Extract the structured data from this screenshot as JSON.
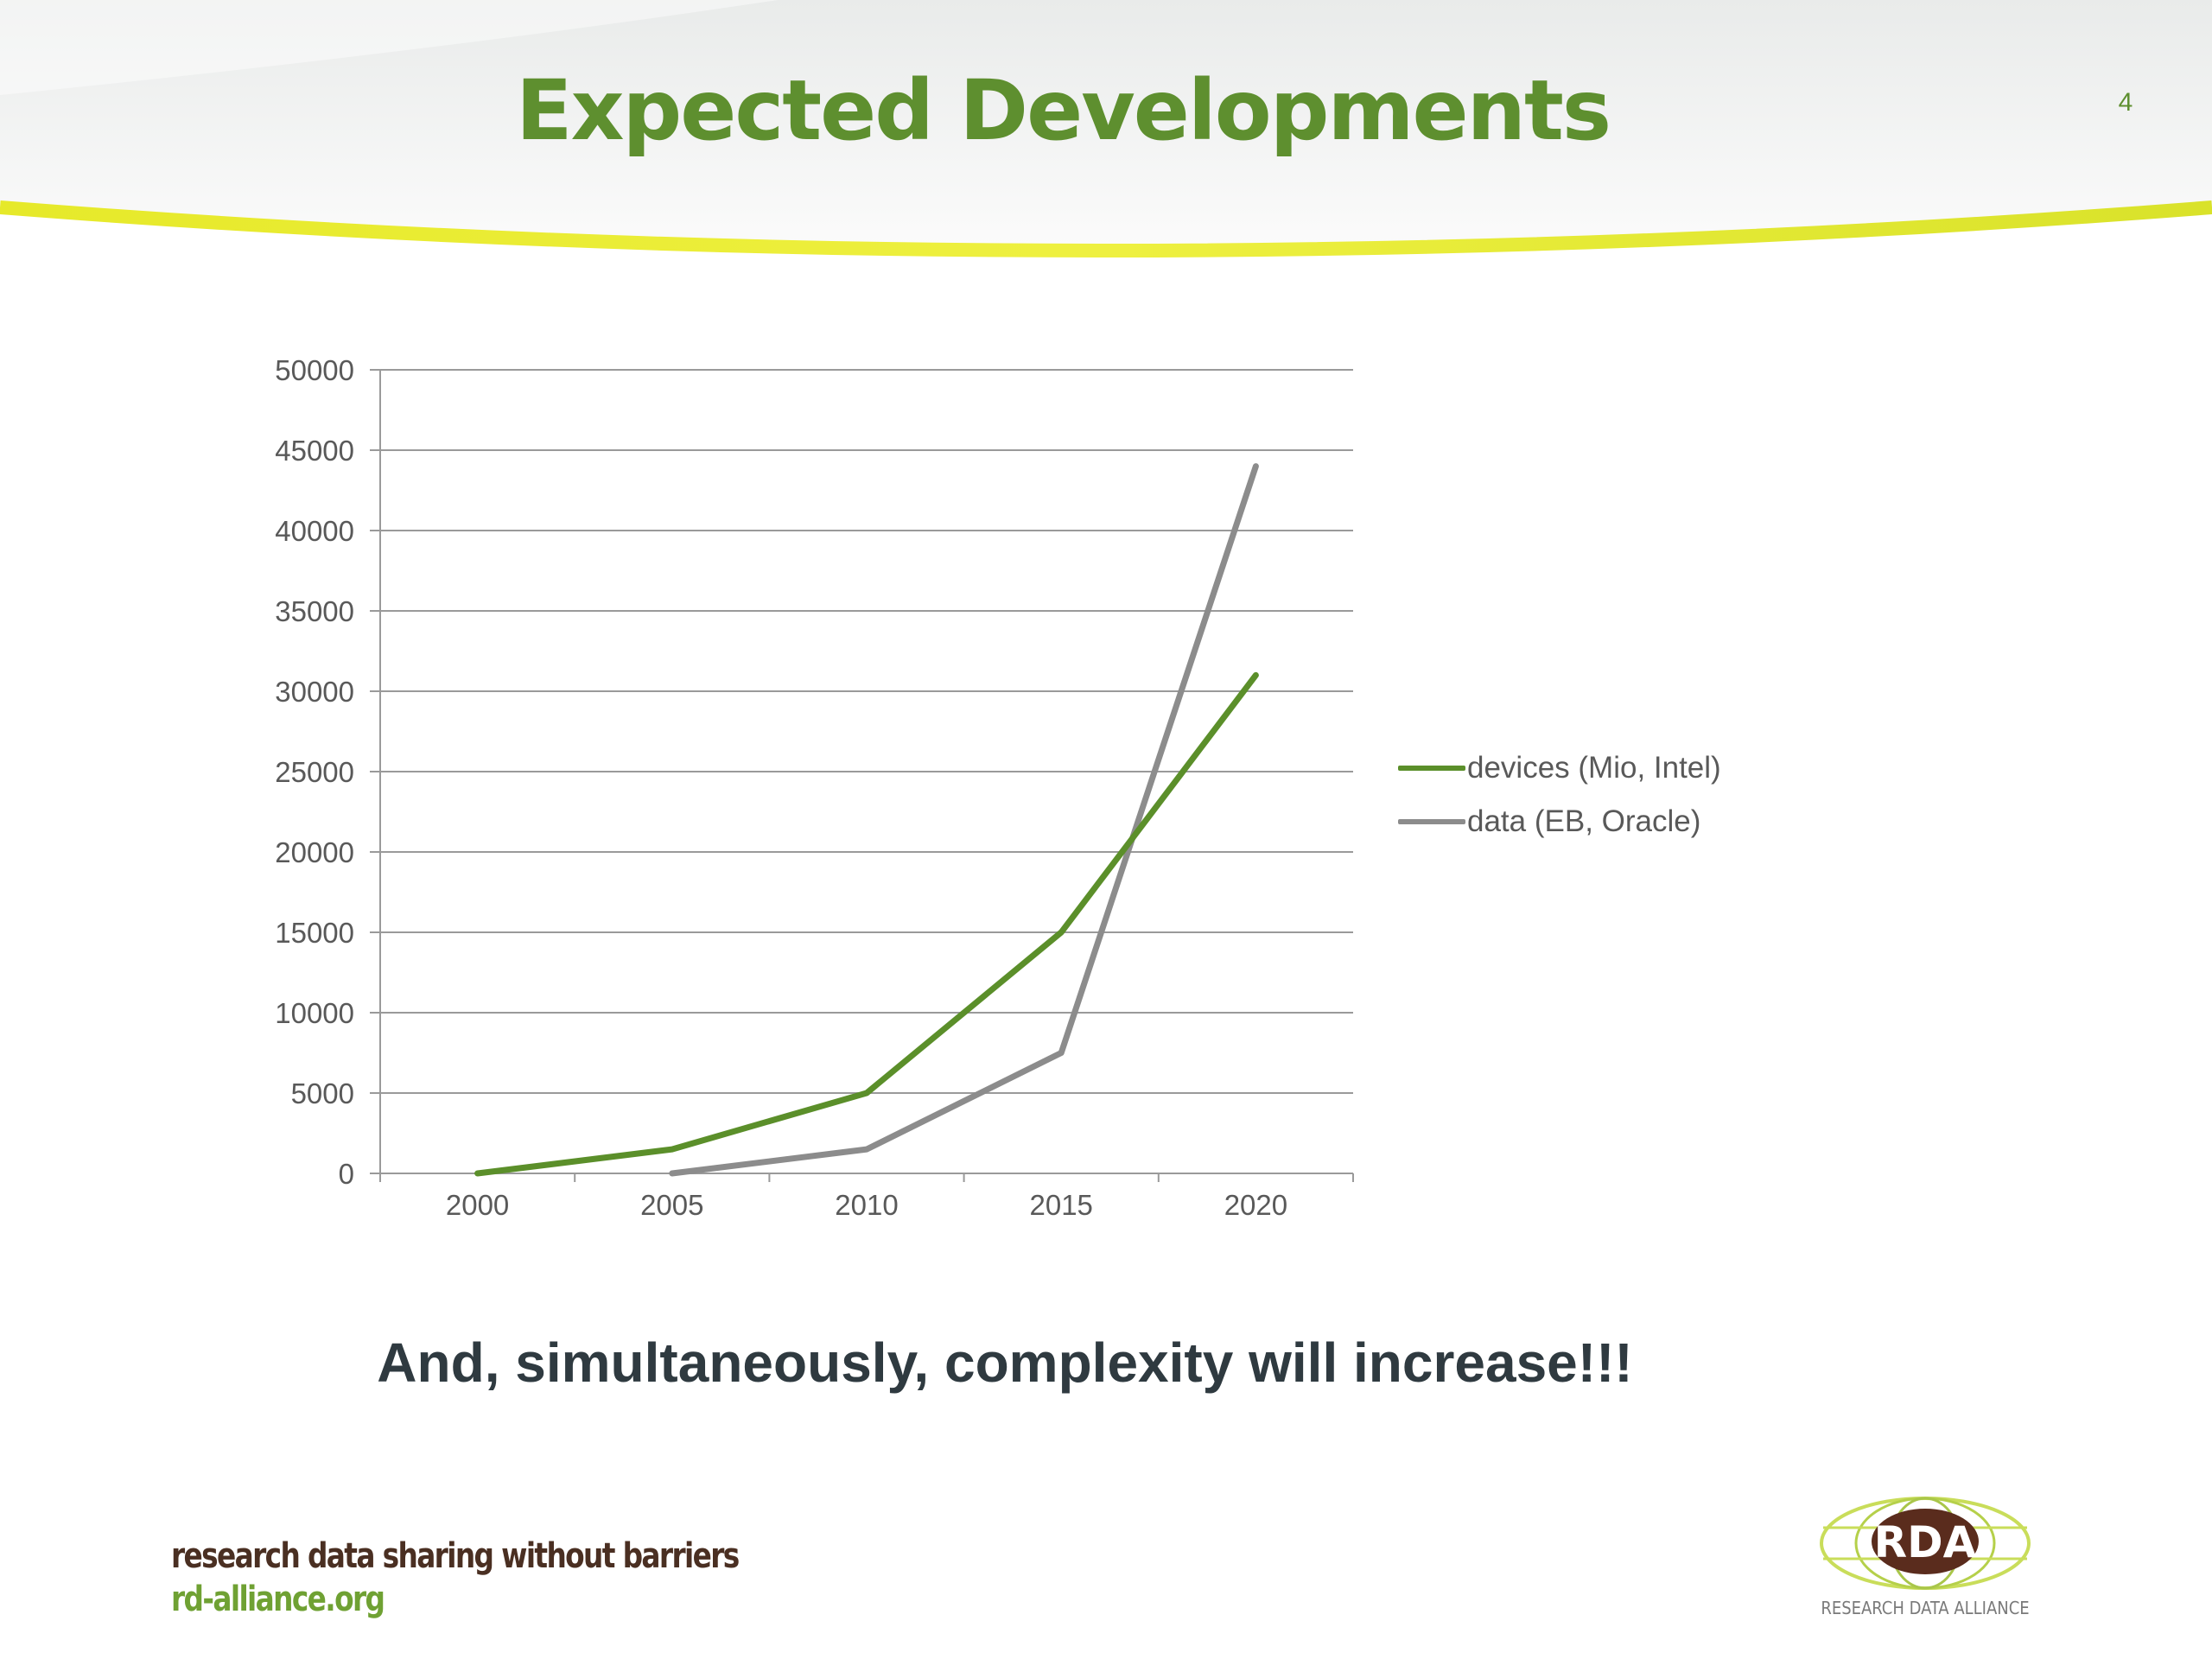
{
  "slide": {
    "title": "Expected Developments",
    "page_number": "4",
    "tagline": "And, simultaneously, complexity will increase!!!"
  },
  "footer": {
    "slogan": "research data sharing without barriers",
    "url": "rd-alliance.org",
    "logo_text": "RDA",
    "logo_subtext": "RESEARCH DATA ALLIANCE"
  },
  "colors": {
    "accent_green": "#5e8f2f",
    "series_green": "#5b8f2a",
    "series_gray": "#8c8c8c",
    "yellow_swoosh": "#e8ec28"
  },
  "chart_data": {
    "type": "line",
    "categories": [
      "2000",
      "2005",
      "2010",
      "2015",
      "2020"
    ],
    "series": [
      {
        "name": "devices (Mio, Intel)",
        "color": "#5b8f2a",
        "values": [
          0,
          1500,
          5000,
          15000,
          31000
        ]
      },
      {
        "name": "data (EB, Oracle)",
        "color": "#8c8c8c",
        "values": [
          null,
          0,
          1500,
          7500,
          44000
        ]
      }
    ],
    "ylim": [
      0,
      50000
    ],
    "yticks": [
      "0",
      "5000",
      "10000",
      "15000",
      "20000",
      "25000",
      "30000",
      "35000",
      "40000",
      "45000",
      "50000"
    ],
    "grid": true,
    "legend_position": "right"
  }
}
